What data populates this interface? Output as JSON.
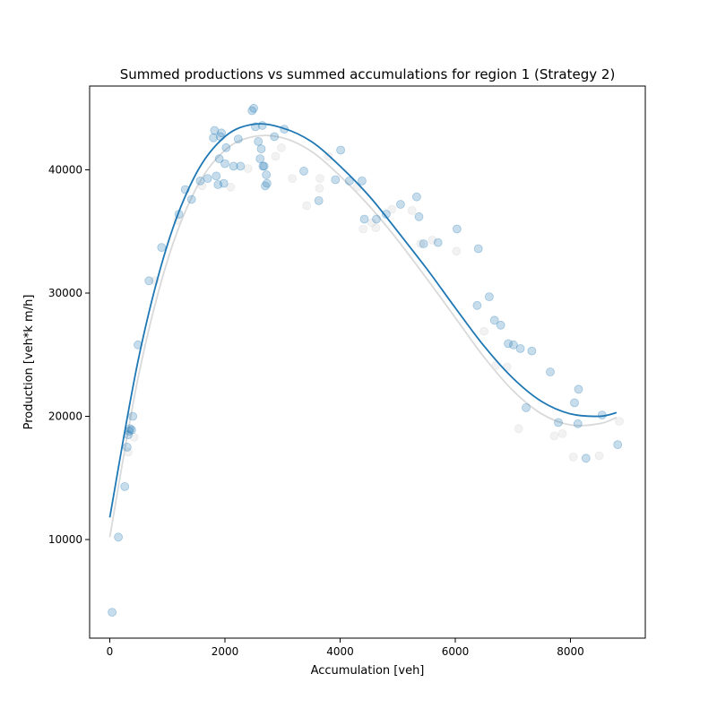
{
  "colors": {
    "primary": "#1f77b4",
    "background_series": "#d9d9d9",
    "axes": "#000000"
  },
  "chart_data": {
    "type": "scatter",
    "title": "Summed productions vs summed accumulations for region 1 (Strategy 2)",
    "xlabel": "Accumulation [veh]",
    "ylabel": "Production [veh*k m/h]",
    "xlim": [
      -350,
      9300
    ],
    "ylim": [
      2000,
      46800
    ],
    "x_ticks": [
      0,
      2000,
      4000,
      6000,
      8000
    ],
    "y_ticks": [
      10000,
      20000,
      30000,
      40000
    ],
    "x_tick_labels": [
      "0",
      "2000",
      "4000",
      "6000",
      "8000"
    ],
    "y_tick_labels": [
      "10000",
      "20000",
      "30000",
      "40000"
    ],
    "grid": false,
    "legend": "none",
    "series": [
      {
        "kind": "points",
        "color": "#1f77b4",
        "opacity": 0.25,
        "points": [
          [
            40,
            4100
          ],
          [
            150,
            10200
          ],
          [
            260,
            14300
          ],
          [
            300,
            17500
          ],
          [
            320,
            18500
          ],
          [
            340,
            18800
          ],
          [
            350,
            19000
          ],
          [
            380,
            18900
          ],
          [
            400,
            20000
          ],
          [
            490,
            25800
          ],
          [
            680,
            31000
          ],
          [
            900,
            33700
          ],
          [
            1200,
            36400
          ],
          [
            1310,
            38400
          ],
          [
            1420,
            37600
          ],
          [
            1570,
            39100
          ],
          [
            1700,
            39300
          ],
          [
            1800,
            42600
          ],
          [
            1820,
            43200
          ],
          [
            1850,
            39500
          ],
          [
            1880,
            38800
          ],
          [
            1900,
            40900
          ],
          [
            1920,
            42700
          ],
          [
            1940,
            43000
          ],
          [
            1980,
            38900
          ],
          [
            2000,
            40500
          ],
          [
            2020,
            41800
          ],
          [
            2150,
            40300
          ],
          [
            2230,
            42500
          ],
          [
            2270,
            40300
          ],
          [
            2470,
            44800
          ],
          [
            2500,
            45000
          ],
          [
            2530,
            43500
          ],
          [
            2580,
            42300
          ],
          [
            2610,
            40900
          ],
          [
            2630,
            41700
          ],
          [
            2650,
            43600
          ],
          [
            2660,
            40300
          ],
          [
            2680,
            40300
          ],
          [
            2700,
            38700
          ],
          [
            2720,
            39600
          ],
          [
            2730,
            38900
          ],
          [
            2860,
            42700
          ],
          [
            3030,
            43300
          ],
          [
            3370,
            39900
          ],
          [
            3630,
            37500
          ],
          [
            3920,
            39200
          ],
          [
            4010,
            41600
          ],
          [
            4160,
            39100
          ],
          [
            4380,
            39100
          ],
          [
            4420,
            36000
          ],
          [
            4630,
            36000
          ],
          [
            4800,
            36400
          ],
          [
            5050,
            37200
          ],
          [
            5330,
            37800
          ],
          [
            5370,
            36200
          ],
          [
            5450,
            34000
          ],
          [
            5700,
            34100
          ],
          [
            6030,
            35200
          ],
          [
            6380,
            29000
          ],
          [
            6400,
            33600
          ],
          [
            6590,
            29700
          ],
          [
            6680,
            27800
          ],
          [
            6790,
            27400
          ],
          [
            6920,
            25900
          ],
          [
            7010,
            25800
          ],
          [
            7130,
            25500
          ],
          [
            7330,
            25300
          ],
          [
            7650,
            23600
          ],
          [
            7790,
            19500
          ],
          [
            7230,
            20700
          ],
          [
            8070,
            21100
          ],
          [
            8130,
            19400
          ],
          [
            8140,
            22200
          ],
          [
            8270,
            16600
          ],
          [
            8550,
            20100
          ],
          [
            8820,
            17700
          ]
        ]
      },
      {
        "kind": "points",
        "color": "#d9d9d9",
        "opacity": 0.35,
        "points": [
          [
            320,
            17100
          ],
          [
            420,
            18300
          ],
          [
            780,
            31000
          ],
          [
            1180,
            35900
          ],
          [
            1600,
            38700
          ],
          [
            2100,
            38600
          ],
          [
            2400,
            40100
          ],
          [
            2880,
            41100
          ],
          [
            2980,
            41800
          ],
          [
            3170,
            39300
          ],
          [
            3420,
            37100
          ],
          [
            3640,
            38500
          ],
          [
            3650,
            39300
          ],
          [
            3800,
            41100
          ],
          [
            4300,
            38600
          ],
          [
            4400,
            35200
          ],
          [
            4550,
            35700
          ],
          [
            4620,
            35300
          ],
          [
            4900,
            36800
          ],
          [
            5250,
            36700
          ],
          [
            5400,
            34000
          ],
          [
            5600,
            34300
          ],
          [
            6020,
            33400
          ],
          [
            6500,
            26900
          ],
          [
            6700,
            24100
          ],
          [
            6900,
            24000
          ],
          [
            7100,
            19000
          ],
          [
            7720,
            18400
          ],
          [
            7860,
            18600
          ],
          [
            8050,
            16700
          ],
          [
            8500,
            16800
          ],
          [
            8850,
            19600
          ]
        ]
      },
      {
        "kind": "curve",
        "color": "#1f77b4",
        "points": [
          [
            0,
            11800
          ],
          [
            500,
            24700
          ],
          [
            1000,
            33900
          ],
          [
            1500,
            39700
          ],
          [
            2000,
            42700
          ],
          [
            2500,
            43700
          ],
          [
            3000,
            43400
          ],
          [
            3500,
            42300
          ],
          [
            4000,
            40300
          ],
          [
            4500,
            37900
          ],
          [
            5000,
            35000
          ],
          [
            5500,
            32000
          ],
          [
            6000,
            28800
          ],
          [
            6500,
            25700
          ],
          [
            7000,
            23100
          ],
          [
            7500,
            21200
          ],
          [
            8000,
            20200
          ],
          [
            8500,
            20000
          ],
          [
            8800,
            20300
          ]
        ]
      },
      {
        "kind": "curve",
        "color": "#d9d9d9",
        "points": [
          [
            0,
            10200
          ],
          [
            500,
            23300
          ],
          [
            1000,
            32600
          ],
          [
            1500,
            38500
          ],
          [
            2000,
            41600
          ],
          [
            2500,
            42700
          ],
          [
            3000,
            42600
          ],
          [
            3500,
            41500
          ],
          [
            4000,
            39500
          ],
          [
            4500,
            37100
          ],
          [
            5000,
            34300
          ],
          [
            5500,
            31200
          ],
          [
            6000,
            28000
          ],
          [
            6500,
            24800
          ],
          [
            7000,
            22100
          ],
          [
            7500,
            20200
          ],
          [
            8000,
            19300
          ],
          [
            8500,
            19400
          ],
          [
            8800,
            19900
          ]
        ]
      }
    ]
  }
}
